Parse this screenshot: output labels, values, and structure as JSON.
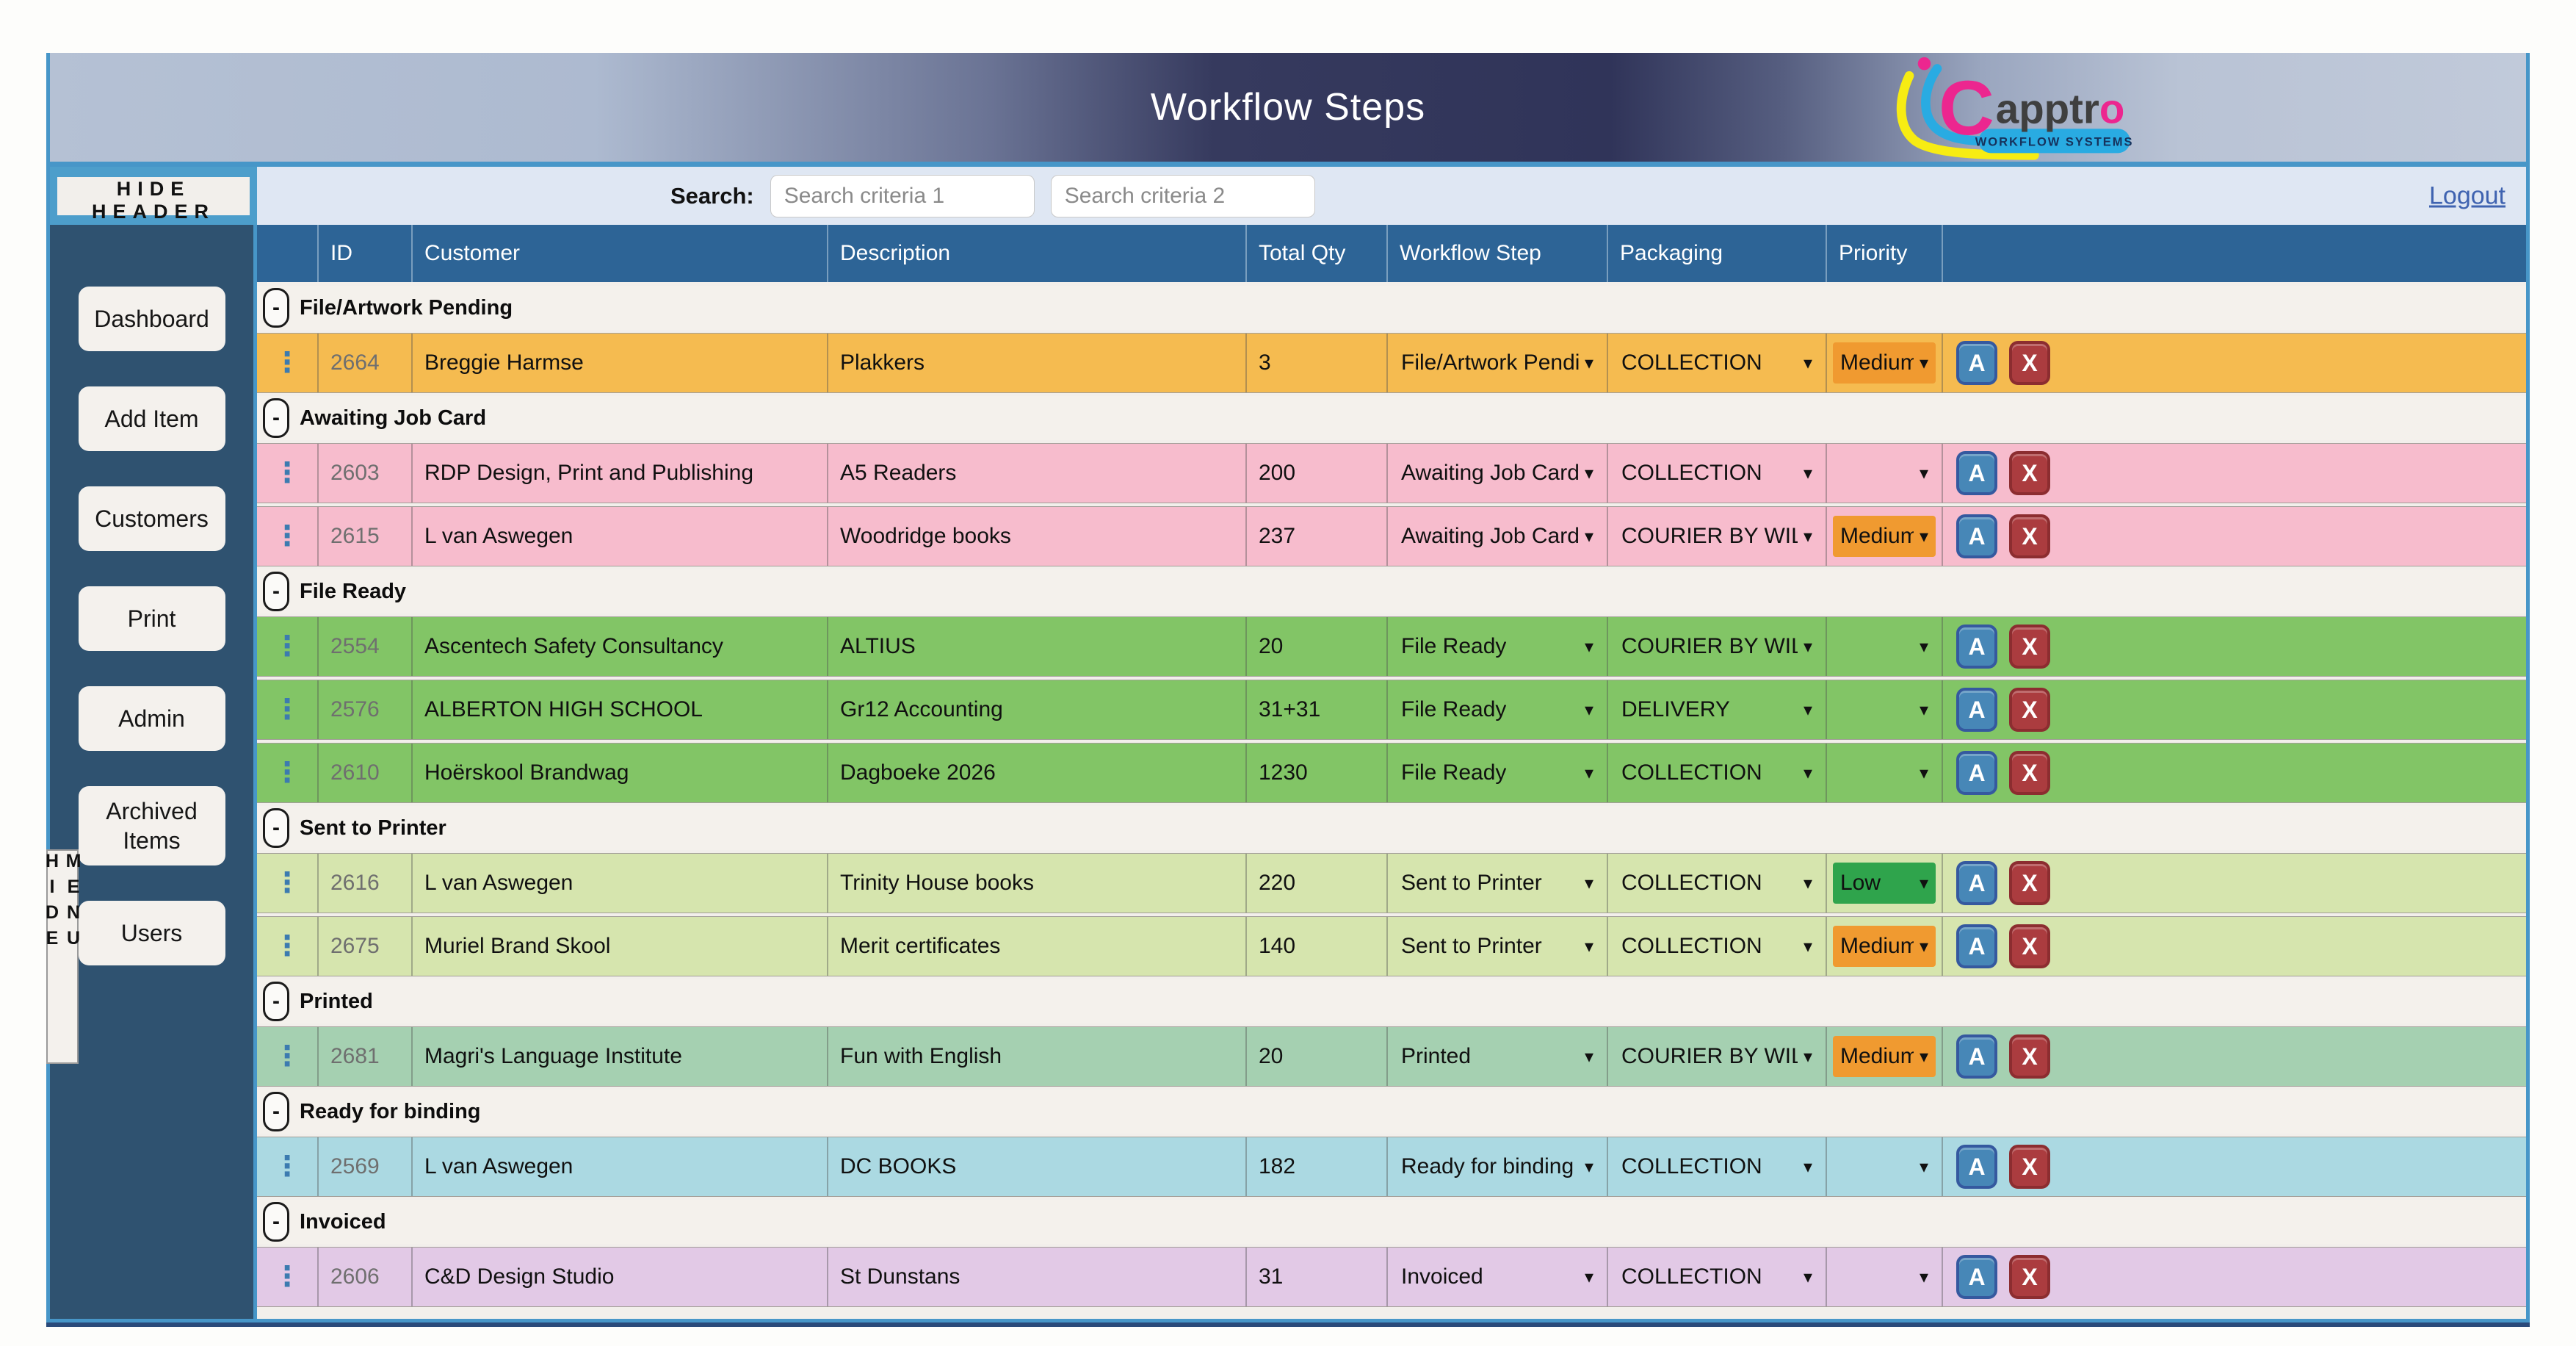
{
  "header": {
    "title": "Workflow Steps",
    "hide_header_label": "HIDE HEADER",
    "search_label": "Search:",
    "search1_placeholder": "Search criteria 1",
    "search2_placeholder": "Search criteria 2",
    "logout_label": "Logout",
    "logo": {
      "c": "C",
      "rest": "apptr",
      "o": "o",
      "tagline": "WORKFLOW SYSTEMS"
    }
  },
  "sidebar": {
    "hide_menu_label": "HIDE MENU",
    "items": [
      {
        "key": "dashboard",
        "label": "Dashboard"
      },
      {
        "key": "add-item",
        "label": "Add Item"
      },
      {
        "key": "customers",
        "label": "Customers"
      },
      {
        "key": "print",
        "label": "Print"
      },
      {
        "key": "admin",
        "label": "Admin"
      },
      {
        "key": "archived-items",
        "label": "Archived Items"
      },
      {
        "key": "users",
        "label": "Users"
      }
    ]
  },
  "table": {
    "columns": [
      "ID",
      "Customer",
      "Description",
      "Total Qty",
      "Workflow Step",
      "Packaging",
      "Priority"
    ],
    "icons": {
      "kebab_glyph": "⋮",
      "chevron_glyph": "▾",
      "collapse_glyph": "-"
    },
    "row_buttons": {
      "a_label": "A",
      "x_label": "X"
    },
    "priority_colors": {
      "Medium": "#f09a30",
      "Low": "#2fa44c"
    },
    "groups": [
      {
        "label": "File/Artwork Pending",
        "row_color": "#f5bb50",
        "rows": [
          {
            "id": "2664",
            "customer": "Breggie Harmse",
            "description": "Plakkers",
            "qty": "3",
            "workflow_step": "File/Artwork Pending",
            "packaging": "COLLECTION",
            "priority": "Medium",
            "priority_color": "#f09a30"
          }
        ]
      },
      {
        "label": "Awaiting Job Card",
        "row_color": "#f7bccd",
        "rows": [
          {
            "id": "2603",
            "customer": "RDP Design, Print and Publishing",
            "description": "A5 Readers",
            "qty": "200",
            "workflow_step": "Awaiting Job Card",
            "packaging": "COLLECTION",
            "priority": "",
            "priority_color": ""
          },
          {
            "id": "2615",
            "customer": "L van Aswegen",
            "description": "Woodridge books",
            "qty": "237",
            "workflow_step": "Awaiting Job Card",
            "packaging": "COURIER BY WIL",
            "priority": "Medium",
            "priority_color": "#f09a30"
          }
        ]
      },
      {
        "label": "File Ready",
        "row_color": "#82c566",
        "rows": [
          {
            "id": "2554",
            "customer": "Ascentech Safety Consultancy",
            "description": "ALTIUS",
            "qty": "20",
            "workflow_step": "File Ready",
            "packaging": "COURIER BY WIL",
            "priority": "",
            "priority_color": ""
          },
          {
            "id": "2576",
            "customer": "ALBERTON HIGH SCHOOL",
            "description": "Gr12 Accounting",
            "qty": "31+31",
            "workflow_step": "File Ready",
            "packaging": "DELIVERY",
            "priority": "",
            "priority_color": ""
          },
          {
            "id": "2610",
            "customer": "Hoërskool Brandwag",
            "description": "Dagboeke 2026",
            "qty": "1230",
            "workflow_step": "File Ready",
            "packaging": "COLLECTION",
            "priority": "",
            "priority_color": ""
          }
        ]
      },
      {
        "label": "Sent to Printer",
        "row_color": "#d6e5ae",
        "rows": [
          {
            "id": "2616",
            "customer": "L van Aswegen",
            "description": "Trinity House books",
            "qty": "220",
            "workflow_step": "Sent to Printer",
            "packaging": "COLLECTION",
            "priority": "Low",
            "priority_color": "#2fa44c"
          },
          {
            "id": "2675",
            "customer": "Muriel Brand Skool",
            "description": "Merit certificates",
            "qty": "140",
            "workflow_step": "Sent to Printer",
            "packaging": "COLLECTION",
            "priority": "Medium",
            "priority_color": "#f09a30"
          }
        ]
      },
      {
        "label": "Printed",
        "row_color": "#a5d0b1",
        "rows": [
          {
            "id": "2681",
            "customer": "Magri's Language Institute",
            "description": "Fun with English",
            "qty": "20",
            "workflow_step": "Printed",
            "packaging": "COURIER BY WIL",
            "priority": "Medium",
            "priority_color": "#f09a30"
          }
        ]
      },
      {
        "label": "Ready for binding",
        "row_color": "#abd9e2",
        "rows": [
          {
            "id": "2569",
            "customer": "L van Aswegen",
            "description": "DC BOOKS",
            "qty": "182",
            "workflow_step": "Ready for binding",
            "packaging": "COLLECTION",
            "priority": "",
            "priority_color": ""
          }
        ]
      },
      {
        "label": "Invoiced",
        "row_color": "#e2c9e6",
        "rows": [
          {
            "id": "2606",
            "customer": "C&D Design Studio",
            "description": "St Dunstans",
            "qty": "31",
            "workflow_step": "Invoiced",
            "packaging": "COLLECTION",
            "priority": "",
            "priority_color": ""
          }
        ]
      }
    ]
  }
}
